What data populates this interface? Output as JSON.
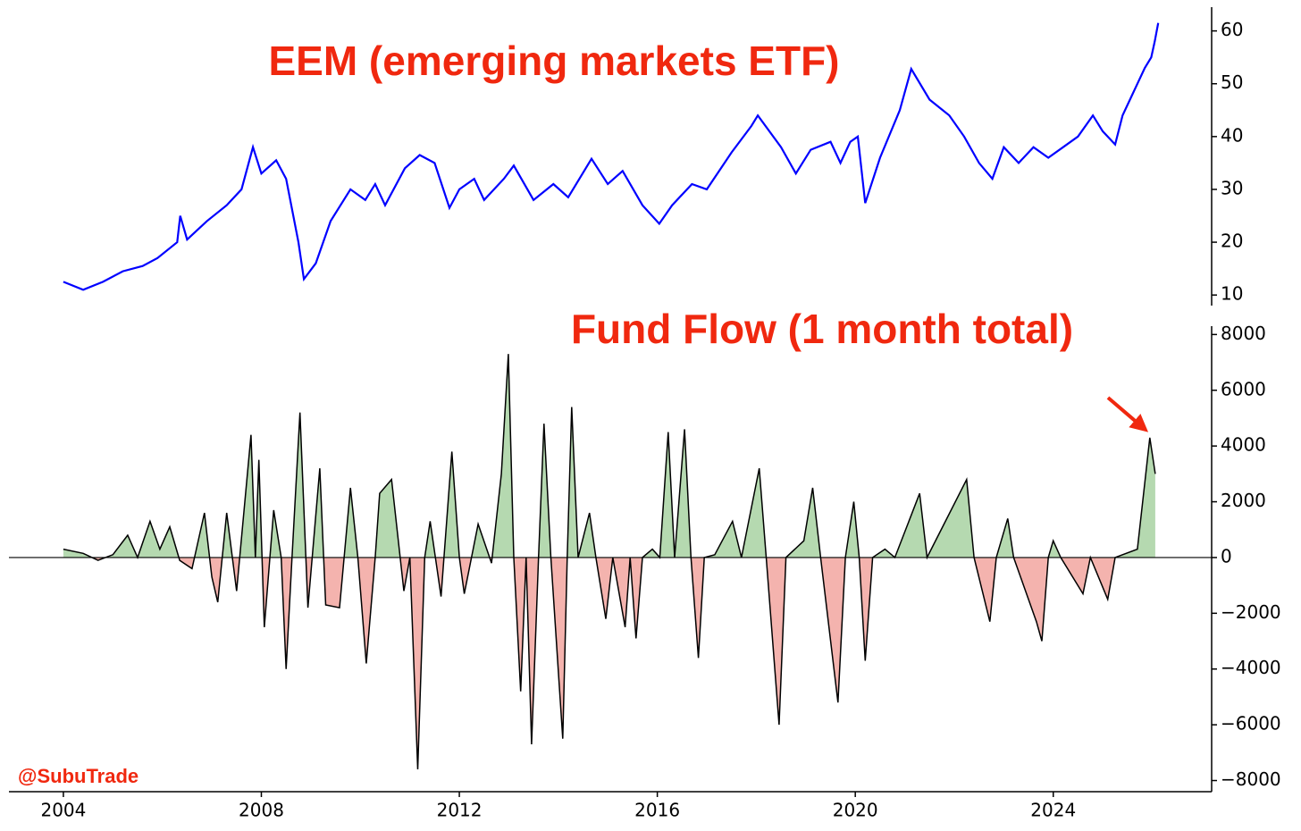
{
  "watermark": "@SubuTrade",
  "chart_data": [
    {
      "type": "line",
      "title": "EEM (emerging markets ETF)",
      "color": "#0000ff",
      "xlim": [
        2002.9,
        2027.2
      ],
      "ylim": [
        8,
        64.5
      ],
      "yticks": [
        10,
        20,
        30,
        40,
        50,
        60
      ],
      "x": [
        2004.0,
        2004.4,
        2004.8,
        2005.2,
        2005.6,
        2005.9,
        2006.3,
        2006.36,
        2006.5,
        2006.9,
        2007.3,
        2007.6,
        2007.83,
        2008.0,
        2008.3,
        2008.5,
        2008.75,
        2008.86,
        2009.1,
        2009.4,
        2009.8,
        2010.1,
        2010.3,
        2010.5,
        2010.9,
        2011.2,
        2011.5,
        2011.8,
        2012.0,
        2012.3,
        2012.5,
        2012.9,
        2013.1,
        2013.5,
        2013.9,
        2014.2,
        2014.67,
        2015.0,
        2015.3,
        2015.7,
        2016.04,
        2016.3,
        2016.7,
        2017.0,
        2017.5,
        2017.9,
        2018.03,
        2018.5,
        2018.8,
        2019.1,
        2019.5,
        2019.7,
        2019.9,
        2020.05,
        2020.2,
        2020.5,
        2020.9,
        2021.13,
        2021.5,
        2021.9,
        2022.2,
        2022.5,
        2022.77,
        2023.0,
        2023.3,
        2023.6,
        2023.9,
        2024.2,
        2024.5,
        2024.8,
        2025.0,
        2025.25,
        2025.4,
        2025.6,
        2025.85,
        2025.98,
        2026.05,
        2026.12
      ],
      "values": [
        12.5,
        11.0,
        12.5,
        14.5,
        15.5,
        17,
        20,
        25,
        20.5,
        24,
        27,
        30,
        38,
        33,
        35.5,
        32,
        20,
        13,
        16,
        24,
        30,
        28,
        31,
        27,
        34,
        36.5,
        35,
        26.5,
        30,
        32,
        28,
        32,
        34.5,
        28,
        31,
        28.5,
        35.8,
        31,
        33.5,
        27,
        23.5,
        27,
        31,
        30,
        37,
        42,
        44,
        38,
        33,
        37.5,
        39,
        35,
        39,
        40,
        27.4,
        36,
        45,
        52.8,
        47,
        44,
        40,
        35,
        32,
        38,
        35,
        38,
        36,
        38,
        40,
        44,
        41,
        38.5,
        44,
        48,
        53,
        55,
        58,
        61.5
      ]
    },
    {
      "type": "area",
      "title": "Fund Flow (1 month total)",
      "color": "#000000",
      "positive_color": "#b5d9b0",
      "negative_color": "#f4b3ae",
      "xlim": [
        2002.9,
        2027.2
      ],
      "ylim": [
        -8400,
        8300
      ],
      "xticks": [
        2004,
        2008,
        2012,
        2016,
        2020,
        2024
      ],
      "yticks": [
        {
          "value": -8000,
          "label": "−8000"
        },
        {
          "value": -6000,
          "label": "−6000"
        },
        {
          "value": -4000,
          "label": "−4000"
        },
        {
          "value": -2000,
          "label": "−2000"
        },
        0,
        2000,
        4000,
        6000,
        8000
      ],
      "x": [
        2004.0,
        2004.4,
        2004.7,
        2005.0,
        2005.3,
        2005.5,
        2005.75,
        2005.95,
        2006.15,
        2006.35,
        2006.6,
        2006.85,
        2007.0,
        2007.12,
        2007.3,
        2007.5,
        2007.79,
        2007.88,
        2007.95,
        2008.06,
        2008.25,
        2008.4,
        2008.5,
        2008.62,
        2008.78,
        2008.94,
        2009.18,
        2009.3,
        2009.58,
        2009.8,
        2009.95,
        2010.12,
        2010.3,
        2010.39,
        2010.63,
        2010.88,
        2011.0,
        2011.16,
        2011.3,
        2011.41,
        2011.63,
        2011.85,
        2012.0,
        2012.1,
        2012.38,
        2012.65,
        2012.85,
        2012.99,
        2013.1,
        2013.24,
        2013.35,
        2013.46,
        2013.6,
        2013.71,
        2013.85,
        2014.09,
        2014.18,
        2014.27,
        2014.4,
        2014.63,
        2014.76,
        2014.96,
        2015.1,
        2015.35,
        2015.45,
        2015.57,
        2015.7,
        2015.9,
        2016.05,
        2016.22,
        2016.35,
        2016.55,
        2016.68,
        2016.83,
        2016.95,
        2017.16,
        2017.52,
        2017.7,
        2018.06,
        2018.2,
        2018.46,
        2018.6,
        2018.96,
        2019.14,
        2019.3,
        2019.65,
        2019.8,
        2019.97,
        2020.08,
        2020.2,
        2020.35,
        2020.6,
        2020.8,
        2021.3,
        2021.45,
        2022.25,
        2022.4,
        2022.72,
        2022.85,
        2023.08,
        2023.2,
        2023.66,
        2023.77,
        2023.9,
        2024.0,
        2024.15,
        2024.6,
        2024.75,
        2025.1,
        2025.25,
        2025.7,
        2025.95,
        2026.06
      ],
      "values": [
        300,
        150,
        -100,
        100,
        800,
        0,
        1300,
        300,
        1100,
        -100,
        -400,
        1600,
        -700,
        -1600,
        1600,
        -1200,
        4400,
        0,
        3500,
        -2500,
        1700,
        0,
        -4000,
        0,
        5200,
        -1800,
        3200,
        -1700,
        -1800,
        2500,
        0,
        -3800,
        0,
        2300,
        2800,
        -1200,
        0,
        -7600,
        0,
        1300,
        -1400,
        3800,
        0,
        -1300,
        1200,
        -200,
        3000,
        7300,
        0,
        -4800,
        0,
        -6700,
        0,
        4800,
        0,
        -6500,
        0,
        5400,
        0,
        1600,
        0,
        -2200,
        0,
        -2500,
        0,
        -2900,
        0,
        300,
        0,
        4500,
        0,
        4600,
        0,
        -3600,
        0,
        100,
        1300,
        0,
        3200,
        0,
        -6000,
        0,
        600,
        2500,
        0,
        -5200,
        0,
        2000,
        0,
        -3700,
        0,
        300,
        0,
        2300,
        0,
        2800,
        0,
        -2300,
        0,
        1400,
        0,
        -2300,
        -3000,
        0,
        600,
        0,
        -1300,
        0,
        -1500,
        0,
        300,
        4300,
        3000
      ]
    }
  ]
}
